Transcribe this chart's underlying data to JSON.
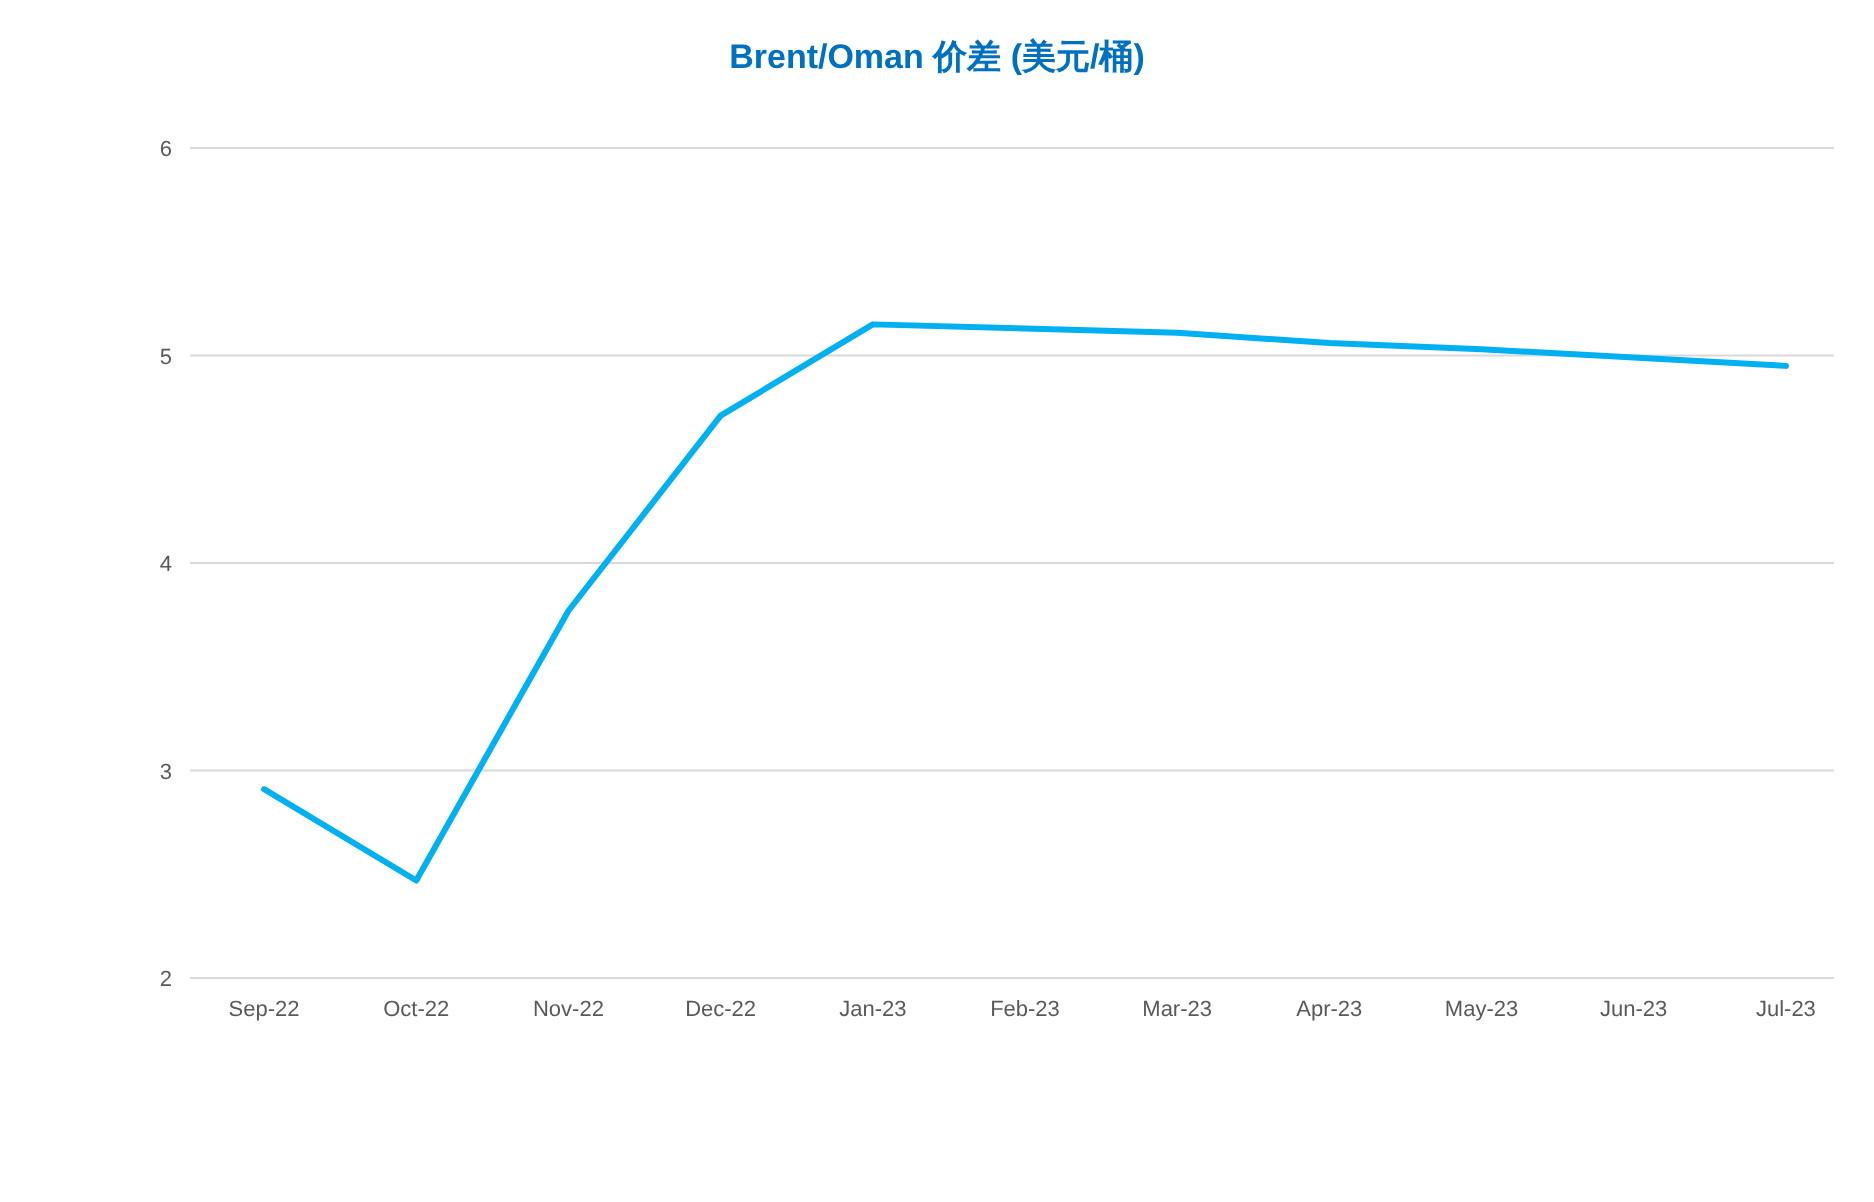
{
  "chart_data": {
    "type": "line",
    "title": "Brent/Oman 价差 (美元/桶)",
    "categories": [
      "Sep-22",
      "Oct-22",
      "Nov-22",
      "Dec-22",
      "Jan-23",
      "Feb-23",
      "Mar-23",
      "Apr-23",
      "May-23",
      "Jun-23",
      "Jul-23"
    ],
    "series": [
      {
        "color": "#00b0f0",
        "values": [
          2.91,
          2.47,
          3.77,
          4.71,
          5.15,
          5.13,
          5.11,
          5.06,
          5.03,
          4.99,
          4.95
        ]
      }
    ],
    "ylim": [
      2,
      6
    ],
    "yticks": [
      2,
      3,
      4,
      5,
      6
    ],
    "grid": "y",
    "marker": "none",
    "line_style": "solid"
  }
}
